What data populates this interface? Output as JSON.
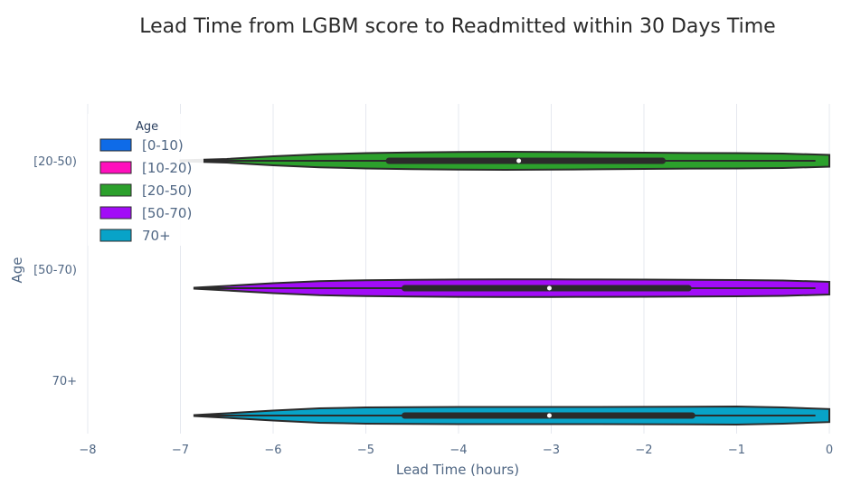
{
  "chart_data": {
    "type": "violin",
    "title": "Lead Time from LGBM score to Readmitted within 30 Days Time",
    "xlabel": "Lead Time (hours)",
    "ylabel": "Age",
    "xlim": [
      -8,
      0
    ],
    "x_ticks": [
      "−8",
      "−7",
      "−6",
      "−5",
      "−4",
      "−3",
      "−2",
      "−1",
      "0"
    ],
    "x_tick_values": [
      -8,
      -7,
      -6,
      -5,
      -4,
      -3,
      -2,
      -1,
      0
    ],
    "y_tick_labels": [
      "[20-50)",
      "[50-70)",
      "70+"
    ],
    "grid": true,
    "legend": {
      "title": "Age",
      "position": "top-left",
      "items": [
        {
          "label": "[0-10)",
          "color": "#0e6be8"
        },
        {
          "label": "[10-20)",
          "color": "#ff0fbc"
        },
        {
          "label": "[20-50)",
          "color": "#2ca02c"
        },
        {
          "label": "[50-70)",
          "color": "#a20cf7"
        },
        {
          "label": "70+",
          "color": "#08a3c8"
        }
      ]
    },
    "series": [
      {
        "name": "[20-50)",
        "category": "[20-50)",
        "color": "#2ca02c",
        "min": -7.0,
        "q1": -4.75,
        "median": -3.35,
        "q3": -1.8,
        "max": -0.15,
        "density": [
          [
            -7.0,
            0.05
          ],
          [
            -6.5,
            0.2
          ],
          [
            -6.0,
            0.5
          ],
          [
            -5.5,
            0.72
          ],
          [
            -5.0,
            0.85
          ],
          [
            -4.5,
            0.92
          ],
          [
            -4.0,
            0.97
          ],
          [
            -3.5,
            1.0
          ],
          [
            -3.0,
            0.98
          ],
          [
            -2.5,
            0.94
          ],
          [
            -2.0,
            0.9
          ],
          [
            -1.5,
            0.86
          ],
          [
            -1.0,
            0.85
          ],
          [
            -0.5,
            0.8
          ],
          [
            0.0,
            0.65
          ]
        ]
      },
      {
        "name": "[50-70)",
        "category": "[50-70)",
        "color": "#a20cf7",
        "min": -6.85,
        "q1": -4.58,
        "median": -3.02,
        "q3": -1.52,
        "max": -0.15,
        "density": [
          [
            -6.85,
            0.05
          ],
          [
            -6.5,
            0.25
          ],
          [
            -6.0,
            0.55
          ],
          [
            -5.5,
            0.78
          ],
          [
            -5.0,
            0.88
          ],
          [
            -4.5,
            0.93
          ],
          [
            -4.0,
            0.96
          ],
          [
            -3.5,
            0.97
          ],
          [
            -3.0,
            0.97
          ],
          [
            -2.5,
            0.96
          ],
          [
            -2.0,
            0.95
          ],
          [
            -1.5,
            0.93
          ],
          [
            -1.0,
            0.9
          ],
          [
            -0.5,
            0.85
          ],
          [
            0.0,
            0.7
          ]
        ]
      },
      {
        "name": "70+",
        "category": "70+",
        "color": "#08a3c8",
        "min": -6.85,
        "q1": -4.58,
        "median": -3.02,
        "q3": -1.48,
        "max": -0.15,
        "density": [
          [
            -6.85,
            0.05
          ],
          [
            -6.5,
            0.25
          ],
          [
            -6.0,
            0.55
          ],
          [
            -5.5,
            0.8
          ],
          [
            -5.0,
            0.9
          ],
          [
            -4.5,
            0.93
          ],
          [
            -4.0,
            0.95
          ],
          [
            -3.5,
            0.95
          ],
          [
            -3.0,
            0.95
          ],
          [
            -2.5,
            0.95
          ],
          [
            -2.0,
            0.96
          ],
          [
            -1.5,
            0.97
          ],
          [
            -1.0,
            1.0
          ],
          [
            -0.5,
            0.9
          ],
          [
            0.0,
            0.72
          ]
        ]
      }
    ]
  }
}
